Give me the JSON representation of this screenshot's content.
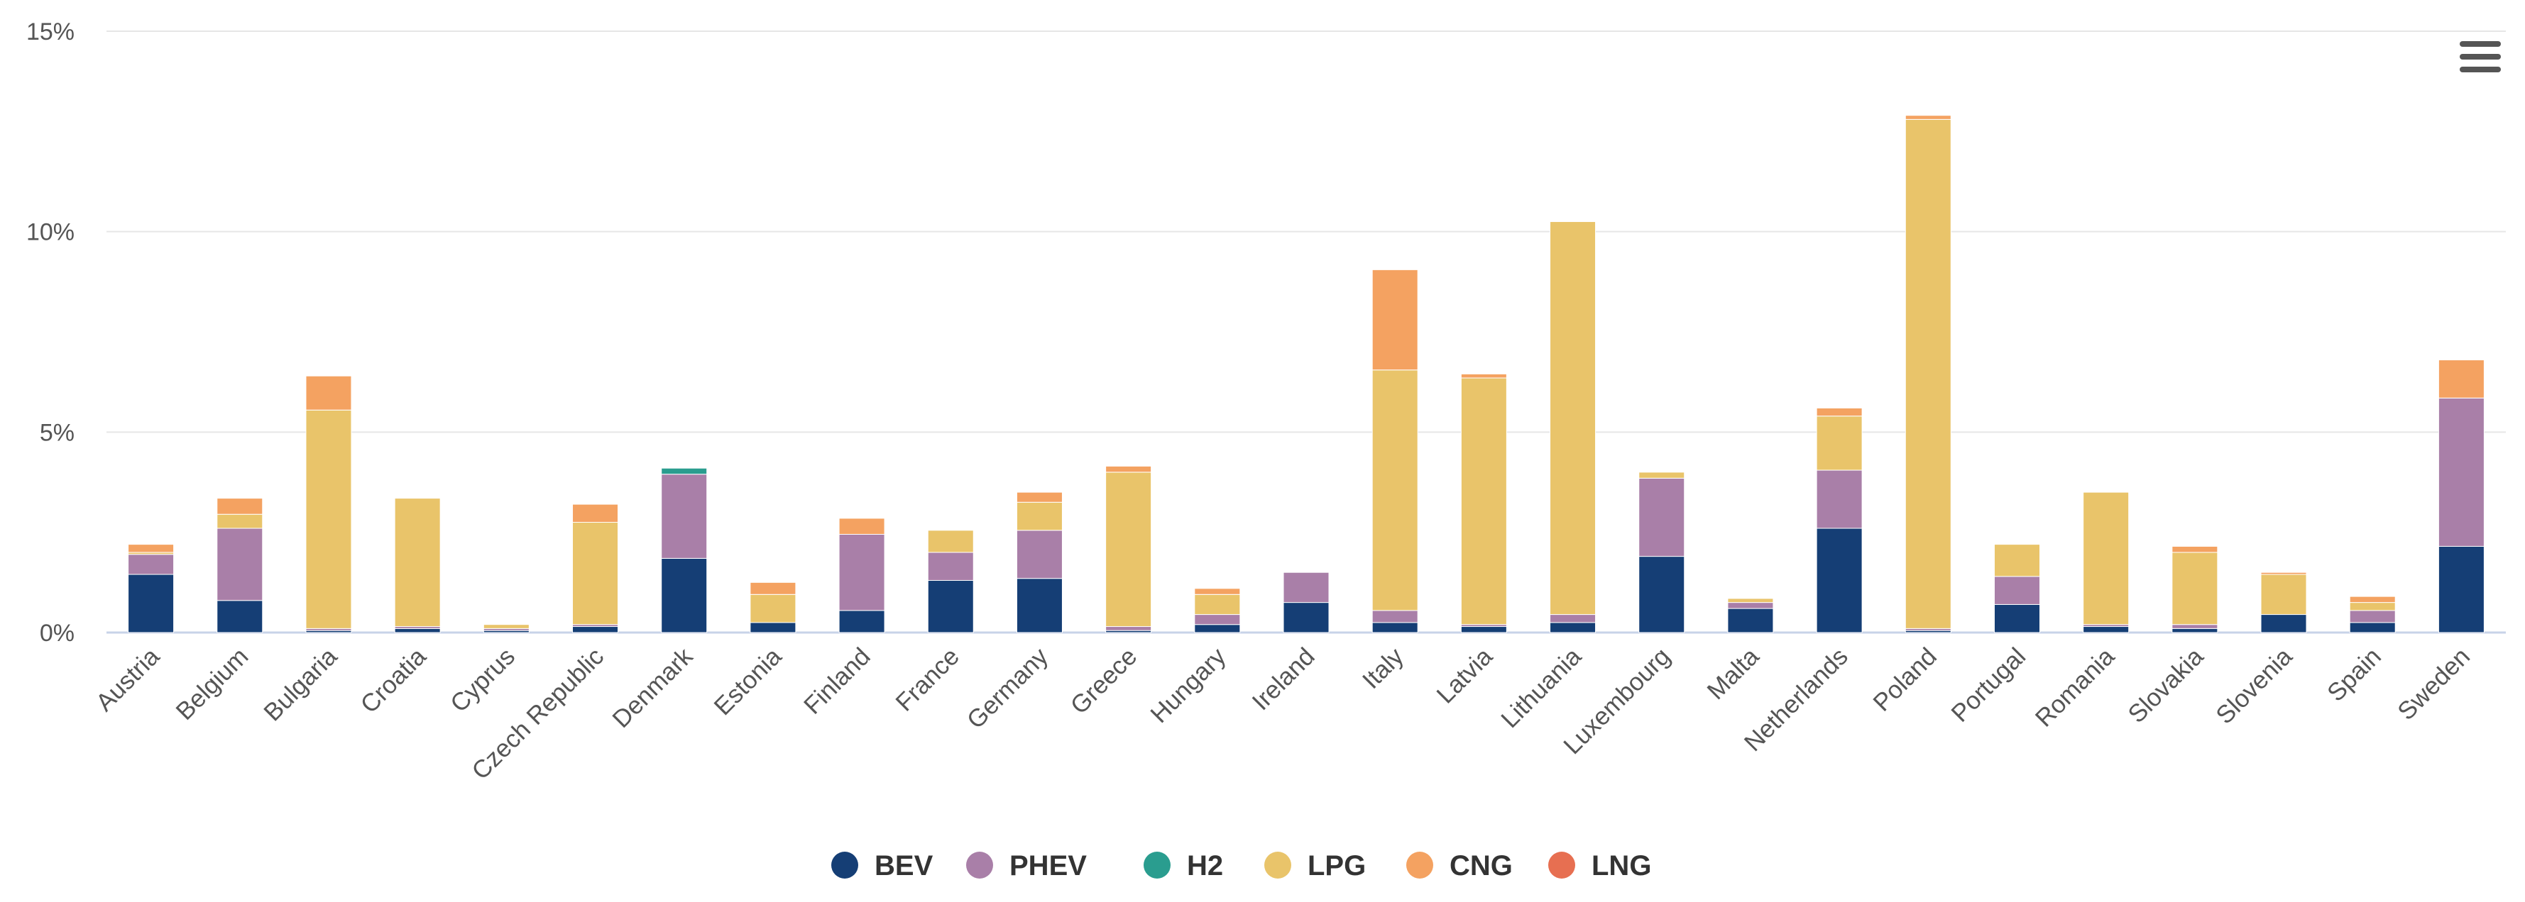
{
  "chart_data": {
    "type": "bar",
    "stacked": true,
    "title": "",
    "xlabel": "",
    "ylabel": "",
    "ylim": [
      0,
      15
    ],
    "y_ticks": [
      "0%",
      "5%",
      "10%",
      "15%"
    ],
    "grid": true,
    "legend_position": "bottom-center",
    "categories": [
      "Austria",
      "Belgium",
      "Bulgaria",
      "Croatia",
      "Cyprus",
      "Czech Republic",
      "Denmark",
      "Estonia",
      "Finland",
      "France",
      "Germany",
      "Greece",
      "Hungary",
      "Ireland",
      "Italy",
      "Latvia",
      "Lithuania",
      "Luxembourg",
      "Malta",
      "Netherlands",
      "Poland",
      "Portugal",
      "Romania",
      "Slovakia",
      "Slovenia",
      "Spain",
      "Sweden"
    ],
    "series": [
      {
        "name": "BEV",
        "color": "#153e75",
        "values": [
          1.45,
          0.8,
          0.05,
          0.1,
          0.05,
          0.15,
          1.85,
          0.25,
          0.55,
          1.3,
          1.35,
          0.05,
          0.2,
          0.75,
          0.25,
          0.15,
          0.25,
          1.9,
          0.6,
          2.6,
          0.05,
          0.7,
          0.15,
          0.1,
          0.45,
          0.25,
          2.15
        ]
      },
      {
        "name": "PHEV",
        "color": "#a97fa8",
        "values": [
          0.5,
          1.8,
          0.05,
          0.05,
          0.05,
          0.05,
          2.1,
          0.0,
          1.9,
          0.7,
          1.2,
          0.1,
          0.25,
          0.75,
          0.3,
          0.05,
          0.2,
          1.95,
          0.15,
          1.45,
          0.05,
          0.7,
          0.05,
          0.1,
          0.0,
          0.3,
          3.7
        ]
      },
      {
        "name": "H2",
        "color": "#2a9d8f",
        "values": [
          0,
          0,
          0,
          0,
          0,
          0,
          0.15,
          0,
          0,
          0,
          0,
          0,
          0,
          0,
          0,
          0,
          0,
          0,
          0,
          0,
          0,
          0,
          0,
          0,
          0,
          0,
          0
        ]
      },
      {
        "name": "LPG",
        "color": "#e9c46a",
        "values": [
          0.05,
          0.35,
          5.45,
          3.2,
          0.1,
          2.55,
          0.0,
          0.7,
          0.0,
          0.55,
          0.7,
          3.85,
          0.5,
          0.0,
          6.0,
          6.15,
          9.8,
          0.15,
          0.1,
          1.35,
          12.7,
          0.8,
          3.3,
          1.8,
          1.0,
          0.2,
          0.0
        ]
      },
      {
        "name": "CNG",
        "color": "#f4a261",
        "values": [
          0.2,
          0.4,
          0.85,
          0.0,
          0.0,
          0.45,
          0.0,
          0.3,
          0.4,
          0.0,
          0.25,
          0.15,
          0.15,
          0.0,
          2.5,
          0.1,
          0.0,
          0.0,
          0.0,
          0.2,
          0.1,
          0.0,
          0.0,
          0.15,
          0.05,
          0.15,
          0.95
        ]
      },
      {
        "name": "LNG",
        "color": "#e76f51",
        "values": [
          0,
          0,
          0,
          0,
          0,
          0,
          0,
          0,
          0,
          0,
          0,
          0,
          0,
          0,
          0,
          0,
          0,
          0,
          0,
          0,
          0,
          0,
          0,
          0,
          0,
          0,
          0
        ]
      }
    ]
  },
  "icons": {
    "menu": "hamburger-menu-icon"
  }
}
